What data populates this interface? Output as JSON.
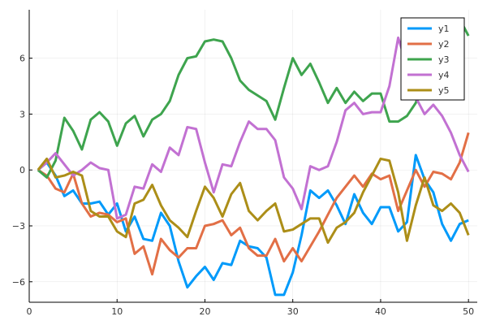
{
  "chart_data": {
    "type": "line",
    "title": "",
    "xlabel": "",
    "ylabel": "",
    "xlim": [
      0,
      51
    ],
    "ylim": [
      -7.1,
      8.6
    ],
    "xticks": [
      0,
      10,
      20,
      30,
      40,
      50
    ],
    "yticks": [
      -6,
      -3,
      0,
      3,
      6
    ],
    "xtick_labels": [
      "0",
      "10",
      "20",
      "30",
      "40",
      "50"
    ],
    "ytick_labels": [
      "−6",
      "−3",
      "0",
      "3",
      "6"
    ],
    "grid": true,
    "legend": "top-right",
    "x": [
      1,
      2,
      3,
      4,
      5,
      6,
      7,
      8,
      9,
      10,
      11,
      12,
      13,
      14,
      15,
      16,
      17,
      18,
      19,
      20,
      21,
      22,
      23,
      24,
      25,
      26,
      27,
      28,
      29,
      30,
      31,
      32,
      33,
      34,
      35,
      36,
      37,
      38,
      39,
      40,
      41,
      42,
      43,
      44,
      45,
      46,
      47,
      48,
      49,
      50
    ],
    "series": [
      {
        "name": "y1",
        "color": "#009AFA",
        "values": [
          0.0,
          0.4,
          -0.3,
          -1.4,
          -1.1,
          -1.8,
          -1.8,
          -1.7,
          -2.4,
          -1.8,
          -3.3,
          -2.5,
          -3.7,
          -3.8,
          -2.3,
          -3.0,
          -4.9,
          -6.3,
          -5.7,
          -5.2,
          -5.9,
          -5.0,
          -5.1,
          -3.8,
          -4.1,
          -4.2,
          -4.7,
          -6.7,
          -6.7,
          -5.5,
          -3.5,
          -1.1,
          -1.5,
          -1.1,
          -1.9,
          -2.9,
          -1.3,
          -2.3,
          -2.9,
          -2.0,
          -2.0,
          -3.3,
          -2.8,
          0.8,
          -0.5,
          -1.2,
          -2.9,
          -3.8,
          -2.9,
          -2.7
        ]
      },
      {
        "name": "y2",
        "color": "#E26F46",
        "values": [
          0.0,
          -0.3,
          -1.0,
          -1.2,
          -0.2,
          -1.8,
          -2.5,
          -2.3,
          -2.4,
          -2.8,
          -2.6,
          -4.5,
          -4.1,
          -5.6,
          -3.7,
          -4.3,
          -4.7,
          -4.2,
          -4.2,
          -3.0,
          -2.9,
          -2.7,
          -3.5,
          -3.1,
          -4.2,
          -4.6,
          -4.6,
          -3.7,
          -4.9,
          -4.2,
          -4.9,
          -4.1,
          -3.3,
          -2.4,
          -1.5,
          -0.9,
          -0.3,
          -0.9,
          -0.2,
          -0.5,
          -0.3,
          -2.2,
          -1.1,
          0.0,
          -0.9,
          -0.1,
          -0.2,
          -0.5,
          0.4,
          2.0
        ]
      },
      {
        "name": "y3",
        "color": "#3EA44E",
        "values": [
          0.0,
          -0.4,
          0.5,
          2.8,
          2.1,
          1.1,
          2.7,
          3.1,
          2.6,
          1.3,
          2.5,
          2.9,
          1.8,
          2.7,
          3.0,
          3.7,
          5.1,
          6.0,
          6.1,
          6.9,
          7.0,
          6.9,
          6.0,
          4.8,
          4.3,
          4.0,
          3.7,
          2.7,
          4.4,
          6.0,
          5.1,
          5.7,
          4.7,
          3.6,
          4.4,
          3.6,
          4.2,
          3.7,
          4.1,
          4.1,
          2.6,
          2.6,
          2.9,
          3.6,
          4.9,
          6.4,
          7.5,
          7.8,
          8.1,
          7.2
        ]
      },
      {
        "name": "y4",
        "color": "#C271D2",
        "values": [
          0.0,
          0.4,
          0.9,
          0.3,
          -0.3,
          0.0,
          0.4,
          0.1,
          0.0,
          -2.6,
          -2.4,
          -0.9,
          -1.0,
          0.3,
          -0.1,
          1.2,
          0.8,
          2.3,
          2.2,
          0.4,
          -1.2,
          0.3,
          0.2,
          1.5,
          2.6,
          2.2,
          2.2,
          1.6,
          -0.4,
          -1.0,
          -2.1,
          0.2,
          0.0,
          0.2,
          1.5,
          3.2,
          3.6,
          3.0,
          3.1,
          3.1,
          4.5,
          7.1,
          5.6,
          3.9,
          3.0,
          3.5,
          2.9,
          2.0,
          0.8,
          -0.1
        ]
      },
      {
        "name": "y5",
        "color": "#AC8E18",
        "values": [
          0.0,
          0.6,
          -0.4,
          -0.3,
          -0.1,
          -0.3,
          -2.2,
          -2.5,
          -2.5,
          -3.3,
          -3.6,
          -1.8,
          -1.6,
          -0.8,
          -1.9,
          -2.7,
          -3.1,
          -3.6,
          -2.2,
          -0.9,
          -1.5,
          -2.5,
          -1.3,
          -0.7,
          -2.2,
          -2.7,
          -2.2,
          -1.8,
          -3.3,
          -3.2,
          -2.9,
          -2.6,
          -2.6,
          -3.9,
          -3.1,
          -2.8,
          -2.3,
          -1.2,
          -0.3,
          0.6,
          0.5,
          -1.2,
          -3.8,
          -1.9,
          -0.4,
          -1.9,
          -2.2,
          -1.8,
          -2.3,
          -3.5
        ]
      }
    ]
  }
}
